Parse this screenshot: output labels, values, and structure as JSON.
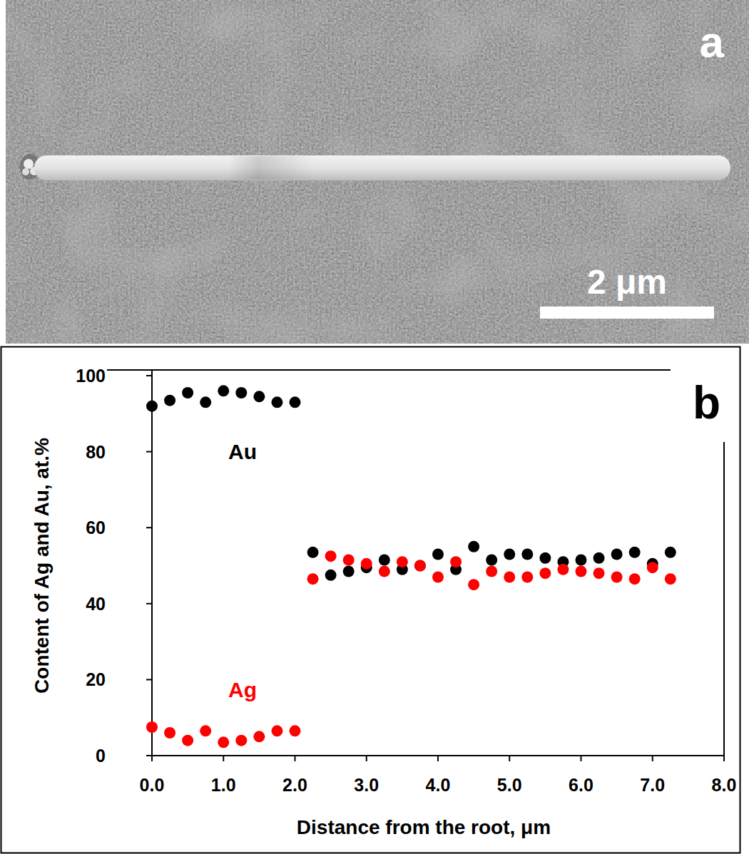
{
  "panel_a": {
    "label": "a",
    "scale_bar_label": "2 μm"
  },
  "chart_data": {
    "type": "scatter",
    "panel_label": "b",
    "x_label": "Distance from the root, μm",
    "y_label": "Content of Ag and Au, at.%",
    "x": [
      0,
      0.25,
      0.5,
      0.75,
      1.0,
      1.25,
      1.5,
      1.75,
      2.0,
      2.25,
      2.5,
      2.75,
      3.0,
      3.25,
      3.5,
      3.75,
      4.0,
      4.25,
      4.5,
      4.75,
      5.0,
      5.25,
      5.5,
      5.75,
      6.0,
      6.25,
      6.5,
      6.75,
      7.0,
      7.25
    ],
    "series": [
      {
        "name": "Au",
        "color": "#000000",
        "marker": "circle",
        "values": [
          92,
          93.5,
          95.5,
          93,
          96,
          95.5,
          94.5,
          93,
          93,
          53.5,
          47.5,
          48.5,
          49.5,
          51.5,
          49,
          50,
          53,
          49,
          55,
          51.5,
          53,
          53,
          52,
          51,
          51.5,
          52,
          53,
          53.5,
          50.5,
          53.5
        ]
      },
      {
        "name": "Ag",
        "color": "#ff0000",
        "marker": "circle",
        "values": [
          7.5,
          6,
          4,
          6.5,
          3.5,
          4,
          5,
          6.5,
          6.5,
          46.5,
          52.5,
          51.5,
          50.5,
          48.5,
          51,
          50,
          47,
          51,
          45,
          48.5,
          47,
          47,
          48,
          49,
          48.5,
          48,
          47,
          46.5,
          49.5,
          46.5
        ]
      }
    ],
    "xlim": [
      0,
      8
    ],
    "ylim": [
      0,
      100
    ],
    "xticks": [
      {
        "value": 0,
        "label": "0.0"
      },
      {
        "value": 1,
        "label": "1.0"
      },
      {
        "value": 2,
        "label": "2.0"
      },
      {
        "value": 3,
        "label": "3.0"
      },
      {
        "value": 4,
        "label": "4.0"
      },
      {
        "value": 5,
        "label": "5.0"
      },
      {
        "value": 6,
        "label": "6.0"
      },
      {
        "value": 7,
        "label": "7.0"
      },
      {
        "value": 8,
        "label": "8.0"
      }
    ],
    "yticks": [
      0,
      20,
      40,
      60,
      80,
      100
    ],
    "grid": false
  }
}
